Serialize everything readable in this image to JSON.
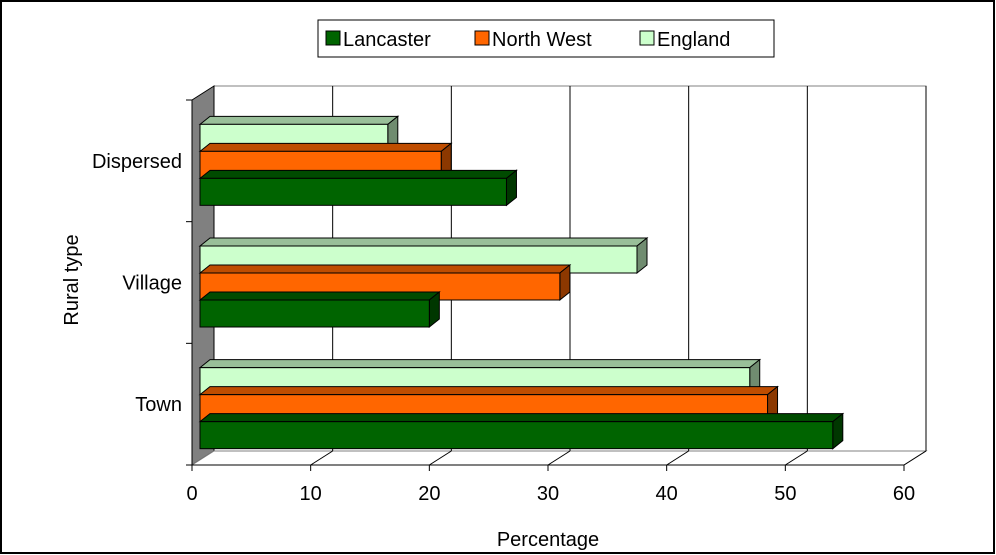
{
  "chart_data": {
    "type": "bar",
    "orientation": "horizontal",
    "three_d": true,
    "categories": [
      "Town",
      "Village",
      "Dispersed"
    ],
    "series": [
      {
        "name": "Lancaster",
        "values": [
          54,
          20,
          26.5
        ],
        "color": "#006400"
      },
      {
        "name": "North West",
        "values": [
          48.5,
          31,
          21
        ],
        "color": "#ff6600"
      },
      {
        "name": "England",
        "values": [
          47,
          37.5,
          16.5
        ],
        "color": "#ccffcc"
      }
    ],
    "title": "",
    "xlabel": "Percentage",
    "ylabel": "Rural type",
    "xlim": [
      0,
      60
    ],
    "xticks": [
      "0",
      "10",
      "20",
      "30",
      "40",
      "50",
      "60"
    ],
    "grid": "vertical",
    "legend_position": "top"
  }
}
